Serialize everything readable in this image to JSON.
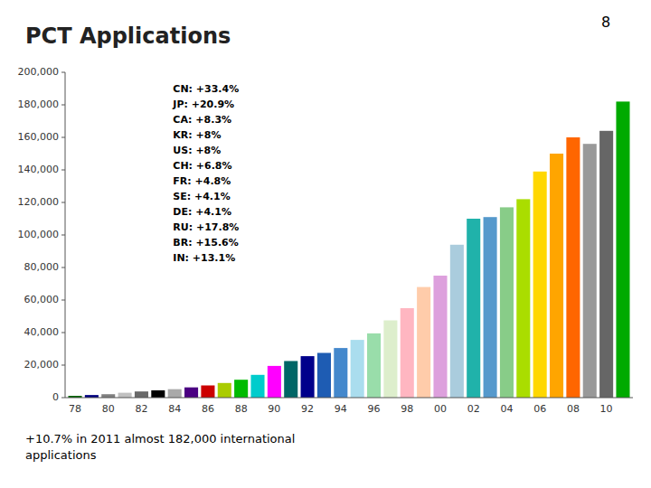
{
  "chart_data": {
    "type": "bar",
    "title": "PCT Applications",
    "annotations": [
      "8",
      "CN: +33.4%\nJP: +20.9%\nCA: +8.3%\nKR: +8%\nUS: +8%\nCH: +6.8%\nFR: +4.8%\nSE: +4.1%\nDE: +4.1%\nRU: +17.8%\nBR: +15.6%\nIN: +13.1%",
      "+10.7% in 2011 almost 182,000 international\napplications"
    ],
    "categories": [
      "78",
      null,
      "80",
      null,
      "82",
      null,
      "84",
      null,
      "86",
      null,
      "88",
      null,
      "90",
      null,
      "92",
      null,
      "94",
      null,
      "96",
      null,
      "98",
      null,
      "00",
      null,
      "02",
      null,
      "04",
      null,
      "06",
      null,
      "08",
      null,
      "10",
      null
    ],
    "values": [
      1100,
      1600,
      2100,
      3000,
      3800,
      4500,
      5200,
      6300,
      7500,
      9000,
      11000,
      14000,
      19500,
      22500,
      25500,
      27500,
      30500,
      35500,
      39500,
      47500,
      55000,
      68000,
      75000,
      94000,
      110000,
      111000,
      117000,
      122000,
      139000,
      150000,
      160000,
      156000,
      164000,
      182000
    ],
    "colors": [
      "#006400",
      "#000080",
      "#808080",
      "#C0C0C0",
      "#696969",
      "#000000",
      "#A9A9A9",
      "#4B0082",
      "#CC0000",
      "#AACC00",
      "#00BB00",
      "#00CCCC",
      "#FF00FF",
      "#006666",
      "#00008B",
      "#1E5CB3",
      "#4488CC",
      "#AADDEE",
      "#99DDAA",
      "#DDEECC",
      "#FFB6C1",
      "#FFCCAA",
      "#DDA0DD",
      "#AACCDD",
      "#20B2AA",
      "#5599CC",
      "#88CC88",
      "#AADD00",
      "#FFD700",
      "#FFA500",
      "#FF6600",
      "#999999",
      "#666666",
      "#00AA00"
    ],
    "ylim": [
      0,
      200000
    ],
    "yticks": [
      0,
      {
        "value": 20000,
        "label": "20,000"
      },
      {
        "value": 40000,
        "label": "40,000"
      },
      {
        "value": 60000,
        "label": "60,000"
      },
      {
        "value": 80000,
        "label": "80,000"
      },
      {
        "value": 100000,
        "label": "100,000"
      },
      {
        "value": 120000,
        "label": "120,000"
      },
      {
        "value": 140000,
        "label": "140,000"
      },
      {
        "value": 160000,
        "label": "160,000"
      },
      {
        "value": 180000,
        "label": "180,000"
      },
      {
        "value": 200000,
        "label": "200,000"
      }
    ],
    "grid": false
  }
}
